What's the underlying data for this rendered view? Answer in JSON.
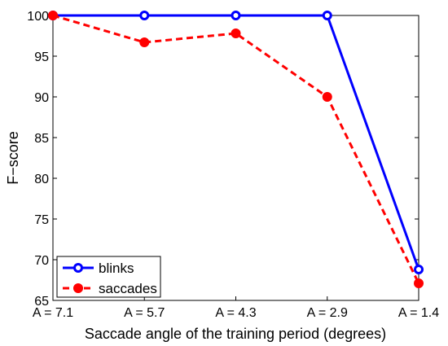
{
  "chart_data": {
    "type": "line",
    "categories": [
      "A = 7.1",
      "A = 5.7",
      "A = 4.3",
      "A = 2.9",
      "A = 1.4"
    ],
    "xlabel": "Saccade angle of the training period (degrees)",
    "ylabel": "F−score",
    "ylim": [
      65,
      100
    ],
    "yticks": [
      65,
      70,
      75,
      80,
      85,
      90,
      95,
      100
    ],
    "grid": false,
    "legend_position": "bottom-left",
    "series": [
      {
        "name": "blinks",
        "values": [
          100,
          100,
          100,
          100,
          68.8
        ],
        "color": "#0000ff",
        "line_style": "solid"
      },
      {
        "name": "saccades",
        "values": [
          100,
          96.7,
          97.8,
          90,
          67.1
        ],
        "color": "#ff0000",
        "line_style": "dashed"
      }
    ]
  }
}
